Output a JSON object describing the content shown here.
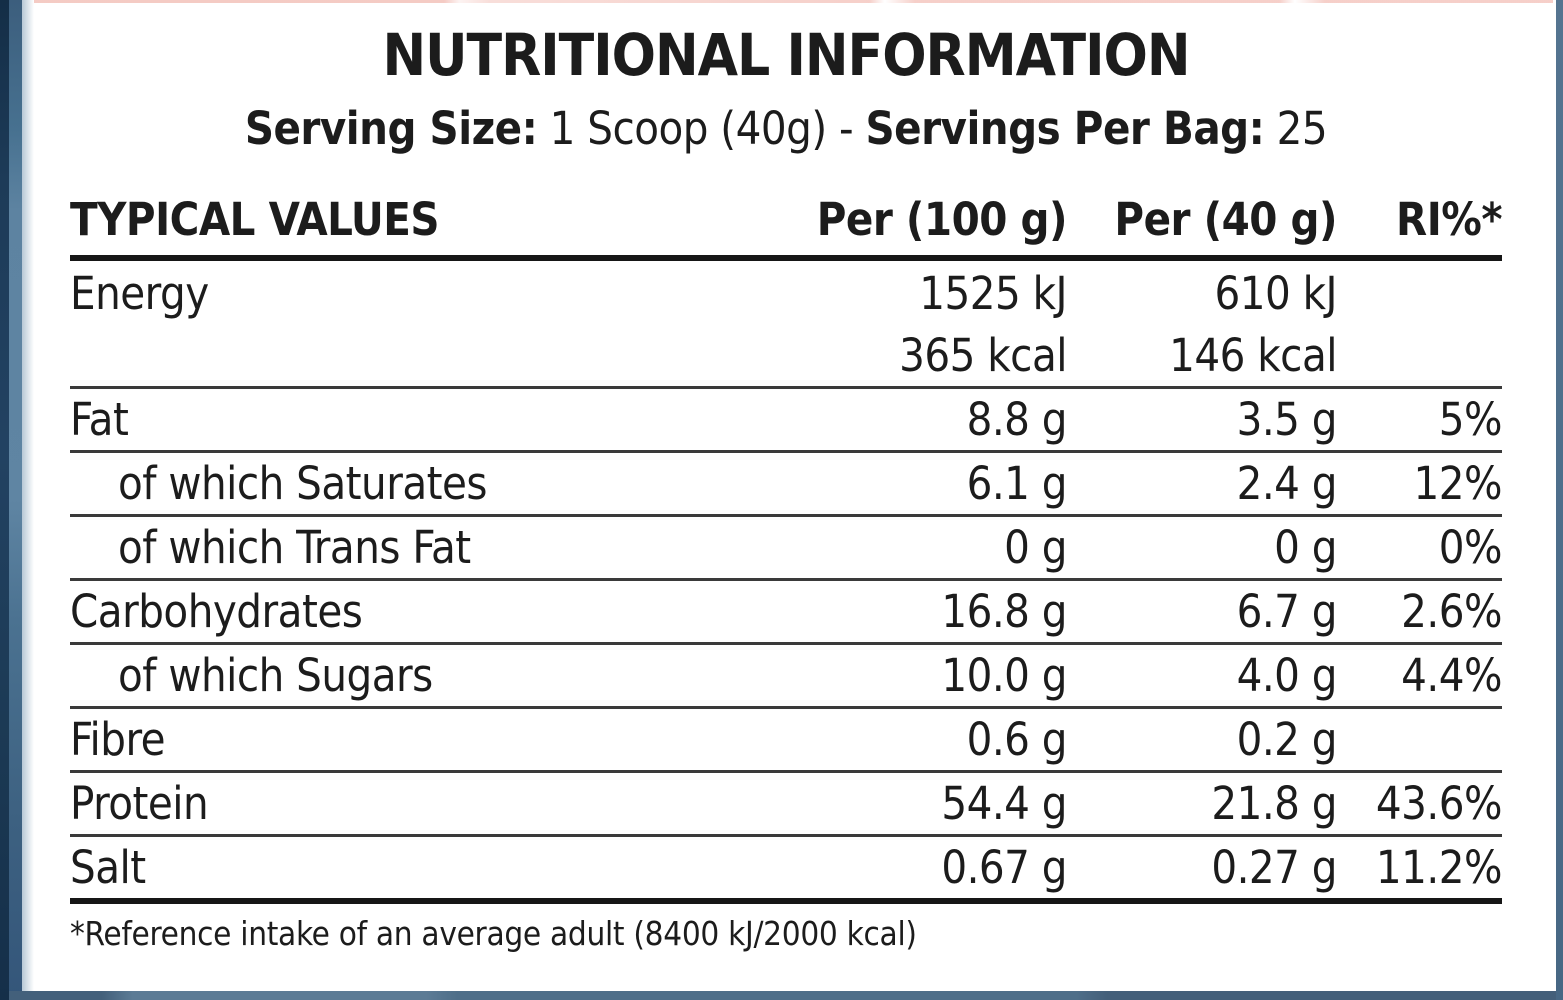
{
  "title": "NUTRITIONAL INFORMATION",
  "serving": {
    "label1": "Serving Size:",
    "value1": " 1 Scoop (40g) - ",
    "label2": "Servings Per Bag:",
    "value2": " 25"
  },
  "table": {
    "headers": [
      "TYPICAL VALUES",
      "Per (100 g)",
      "Per (40 g)",
      "RI%*"
    ],
    "rows": [
      {
        "label": "Energy",
        "sub": false,
        "no_sep": true,
        "per100": "1525 kJ",
        "per40": "610 kJ",
        "ri": ""
      },
      {
        "label": "",
        "sub": false,
        "no_sep": false,
        "per100": "365 kcal",
        "per40": "146 kcal",
        "ri": ""
      },
      {
        "label": "Fat",
        "sub": false,
        "no_sep": false,
        "per100": "8.8 g",
        "per40": "3.5 g",
        "ri": "5%"
      },
      {
        "label": "of which Saturates",
        "sub": true,
        "no_sep": false,
        "per100": "6.1 g",
        "per40": "2.4 g",
        "ri": "12%"
      },
      {
        "label": "of which Trans Fat",
        "sub": true,
        "no_sep": false,
        "per100": "0 g",
        "per40": "0 g",
        "ri": "0%"
      },
      {
        "label": "Carbohydrates",
        "sub": false,
        "no_sep": false,
        "per100": "16.8 g",
        "per40": "6.7 g",
        "ri": "2.6%"
      },
      {
        "label": "of which Sugars",
        "sub": true,
        "no_sep": false,
        "per100": "10.0 g",
        "per40": "4.0 g",
        "ri": "4.4%"
      },
      {
        "label": "Fibre",
        "sub": false,
        "no_sep": false,
        "per100": "0.6 g",
        "per40": "0.2 g",
        "ri": ""
      },
      {
        "label": "Protein",
        "sub": false,
        "no_sep": false,
        "per100": "54.4 g",
        "per40": "21.8 g",
        "ri": "43.6%"
      },
      {
        "label": "Salt",
        "sub": false,
        "no_sep": false,
        "per100": "0.67 g",
        "per40": "0.27 g",
        "ri": "11.2%"
      }
    ]
  },
  "footnote": "*Reference intake of an average adult (8400 kJ/2000 kcal)",
  "colors": {
    "text": "#1c1c1c",
    "frame_navy": "#1d3b58",
    "frame_steel": "#5d83a1",
    "separator": "#3a3a3a",
    "heavy_rule": "#161616",
    "top_artifact_pink": "#eca094"
  }
}
